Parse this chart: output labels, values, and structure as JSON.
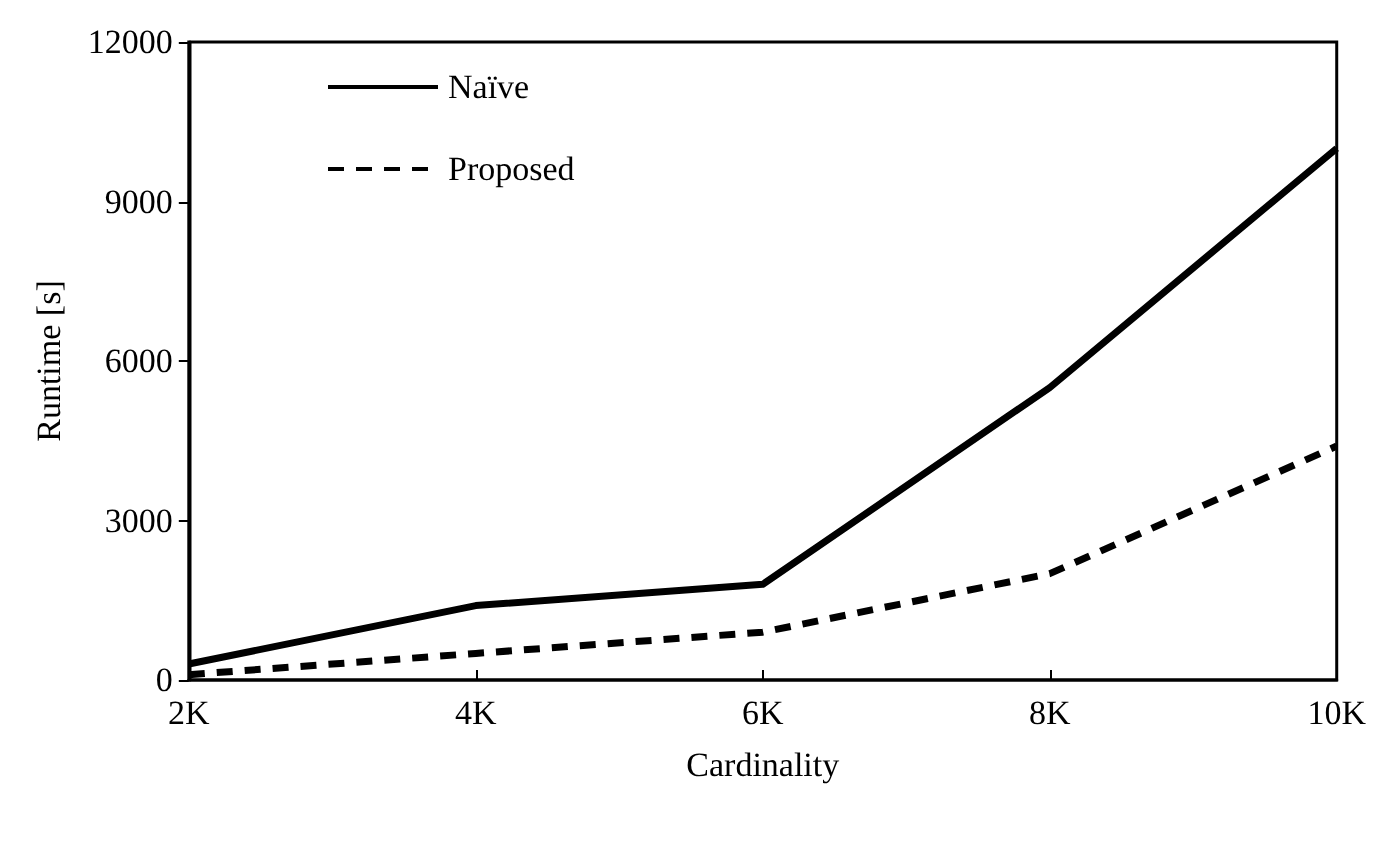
{
  "chart_data": {
    "type": "line",
    "xlabel": "Cardinality",
    "ylabel": "Runtime [s]",
    "categories": [
      "2K",
      "4K",
      "6K",
      "8K",
      "10K"
    ],
    "series": [
      {
        "name": "Naïve",
        "color": "#000000",
        "line_style": "solid",
        "values": [
          300,
          1400,
          1800,
          5500,
          10000
        ]
      },
      {
        "name": "Proposed",
        "color": "#000000",
        "line_style": "dashed",
        "values": [
          100,
          500,
          900,
          2000,
          4400
        ]
      }
    ],
    "ylim": [
      0,
      12000
    ],
    "yticks": [
      0,
      3000,
      6000,
      9000,
      12000
    ],
    "grid": false,
    "legend": "top left",
    "marker": "none"
  }
}
